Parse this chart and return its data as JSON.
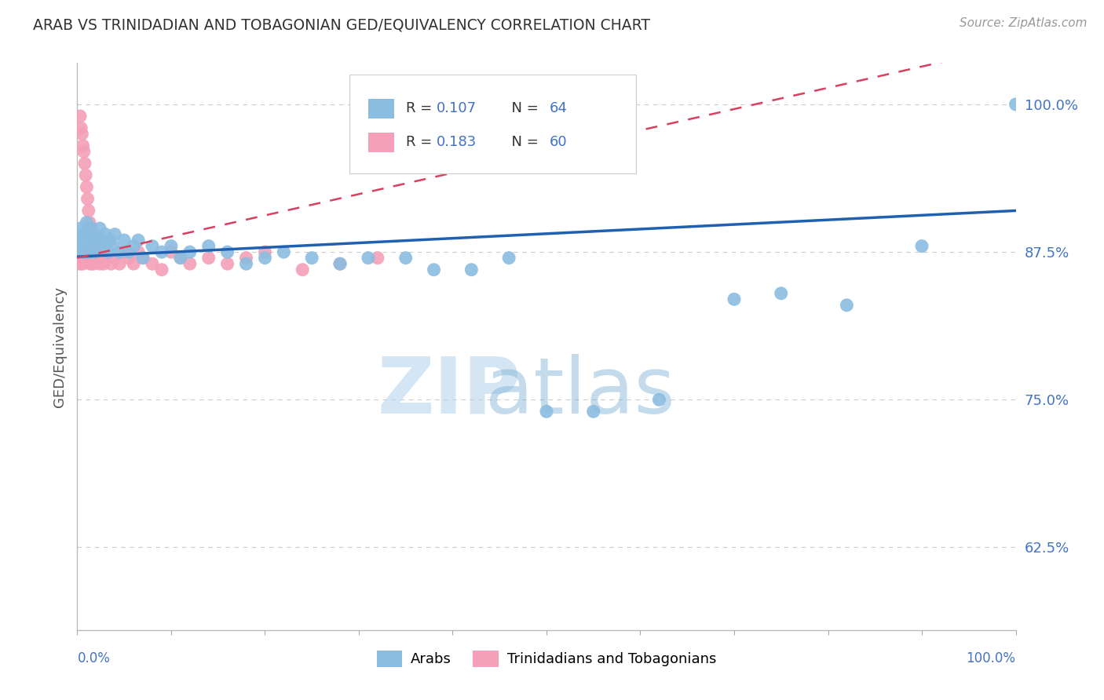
{
  "title": "ARAB VS TRINIDADIAN AND TOBAGONIAN GED/EQUIVALENCY CORRELATION CHART",
  "source": "Source: ZipAtlas.com",
  "ylabel": "GED/Equivalency",
  "ytick_labels": [
    "62.5%",
    "75.0%",
    "87.5%",
    "100.0%"
  ],
  "ytick_values": [
    0.625,
    0.75,
    0.875,
    1.0
  ],
  "xlim": [
    0.0,
    1.0
  ],
  "ylim": [
    0.555,
    1.035
  ],
  "legend_arab_R": "0.107",
  "legend_arab_N": "64",
  "legend_trin_R": "0.183",
  "legend_trin_N": "60",
  "arab_color": "#8BBDE0",
  "trin_color": "#F4A0B8",
  "arab_line_color": "#2060B0",
  "trin_line_color": "#D94060",
  "watermark_zip": "ZIP",
  "watermark_atlas": "atlas",
  "background_color": "#ffffff",
  "grid_color": "#cccccc",
  "title_color": "#333333",
  "tick_color": "#4472C4",
  "arab_x": [
    0.002,
    0.003,
    0.003,
    0.004,
    0.005,
    0.005,
    0.006,
    0.007,
    0.008,
    0.009,
    0.01,
    0.01,
    0.011,
    0.012,
    0.013,
    0.013,
    0.014,
    0.015,
    0.015,
    0.016,
    0.017,
    0.018,
    0.019,
    0.02,
    0.022,
    0.024,
    0.026,
    0.028,
    0.03,
    0.033,
    0.035,
    0.038,
    0.04,
    0.045,
    0.05,
    0.055,
    0.06,
    0.065,
    0.07,
    0.08,
    0.09,
    0.1,
    0.11,
    0.12,
    0.14,
    0.16,
    0.18,
    0.2,
    0.22,
    0.25,
    0.28,
    0.31,
    0.35,
    0.38,
    0.42,
    0.46,
    0.5,
    0.55,
    0.62,
    0.7,
    0.75,
    0.82,
    0.9,
    1.0
  ],
  "arab_y": [
    0.875,
    0.885,
    0.895,
    0.875,
    0.885,
    0.89,
    0.88,
    0.875,
    0.89,
    0.875,
    0.88,
    0.9,
    0.885,
    0.875,
    0.88,
    0.895,
    0.875,
    0.885,
    0.895,
    0.88,
    0.875,
    0.89,
    0.875,
    0.885,
    0.88,
    0.895,
    0.885,
    0.88,
    0.89,
    0.875,
    0.885,
    0.88,
    0.89,
    0.875,
    0.885,
    0.875,
    0.88,
    0.885,
    0.87,
    0.88,
    0.875,
    0.88,
    0.87,
    0.875,
    0.88,
    0.875,
    0.865,
    0.87,
    0.875,
    0.87,
    0.865,
    0.87,
    0.87,
    0.86,
    0.86,
    0.87,
    0.74,
    0.74,
    0.75,
    0.835,
    0.84,
    0.83,
    0.88,
    1.0
  ],
  "trin_x": [
    0.002,
    0.003,
    0.004,
    0.005,
    0.006,
    0.007,
    0.008,
    0.009,
    0.01,
    0.011,
    0.012,
    0.013,
    0.014,
    0.015,
    0.016,
    0.017,
    0.018,
    0.019,
    0.02,
    0.021,
    0.022,
    0.024,
    0.026,
    0.028,
    0.03,
    0.033,
    0.036,
    0.04,
    0.045,
    0.05,
    0.055,
    0.06,
    0.065,
    0.07,
    0.08,
    0.09,
    0.1,
    0.11,
    0.12,
    0.14,
    0.16,
    0.18,
    0.2,
    0.24,
    0.28,
    0.32,
    0.003,
    0.004,
    0.005,
    0.006,
    0.007,
    0.008,
    0.009,
    0.01,
    0.011,
    0.012,
    0.013,
    0.014,
    0.015,
    0.016
  ],
  "trin_y": [
    0.87,
    0.865,
    0.875,
    0.87,
    0.865,
    0.875,
    0.87,
    0.875,
    0.87,
    0.875,
    0.87,
    0.875,
    0.865,
    0.87,
    0.875,
    0.865,
    0.87,
    0.875,
    0.87,
    0.875,
    0.87,
    0.865,
    0.87,
    0.865,
    0.875,
    0.87,
    0.865,
    0.87,
    0.865,
    0.875,
    0.87,
    0.865,
    0.875,
    0.87,
    0.865,
    0.86,
    0.875,
    0.87,
    0.865,
    0.87,
    0.865,
    0.87,
    0.875,
    0.86,
    0.865,
    0.87,
    0.99,
    0.98,
    0.975,
    0.965,
    0.96,
    0.95,
    0.94,
    0.93,
    0.92,
    0.91,
    0.9,
    0.895,
    0.89,
    0.885
  ]
}
